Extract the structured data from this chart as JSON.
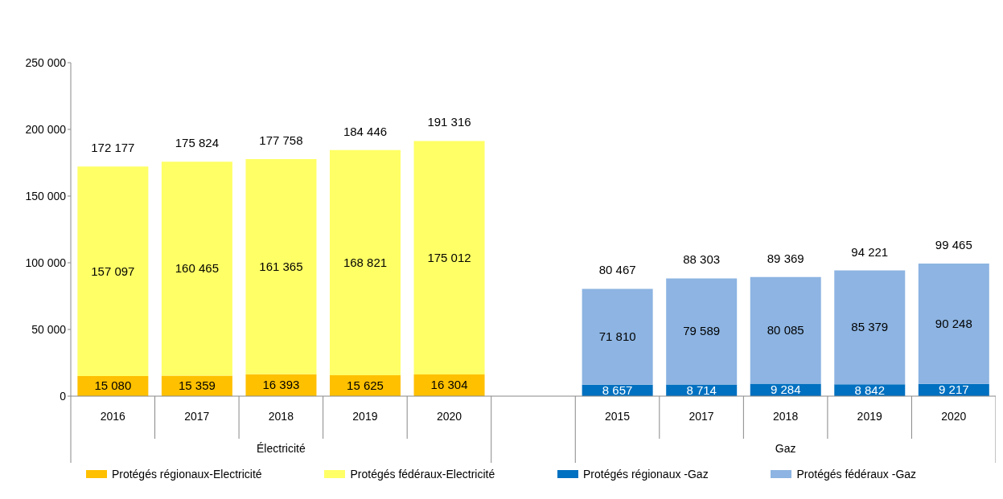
{
  "chart_data": {
    "type": "bar",
    "stacked": true,
    "categories": [
      "2016",
      "2017",
      "2018",
      "2019",
      "2020",
      null,
      "2015",
      "2017",
      "2018",
      "2019",
      "2020"
    ],
    "series": [
      {
        "name": "Protégés régionaux-Electricité",
        "color": "#ffc000",
        "values": [
          15080,
          15359,
          16393,
          15625,
          16304,
          null,
          null,
          null,
          null,
          null,
          null
        ],
        "value_labels": [
          "15 080",
          "15 359",
          "16 393",
          "15 625",
          "16 304",
          null,
          null,
          null,
          null,
          null,
          null
        ]
      },
      {
        "name": "Protégés fédéraux-Electricité",
        "color": "#ffff66",
        "values": [
          157097,
          160465,
          161365,
          168821,
          175012,
          null,
          null,
          null,
          null,
          null,
          null
        ],
        "value_labels": [
          "157 097",
          "160 465",
          "161 365",
          "168 821",
          "175 012",
          null,
          null,
          null,
          null,
          null,
          null
        ]
      },
      {
        "name": "Protégés régionaux -Gaz",
        "color": "#0070c0",
        "values": [
          null,
          null,
          null,
          null,
          null,
          null,
          8657,
          8714,
          9284,
          8842,
          9217
        ],
        "value_labels": [
          null,
          null,
          null,
          null,
          null,
          null,
          "8 657",
          "8 714",
          "9 284",
          "8 842",
          "9 217"
        ]
      },
      {
        "name": "Protégés fédéraux -Gaz",
        "color": "#8db4e2",
        "values": [
          null,
          null,
          null,
          null,
          null,
          null,
          71810,
          79589,
          80085,
          85379,
          90248
        ],
        "value_labels": [
          null,
          null,
          null,
          null,
          null,
          null,
          "71 810",
          "79 589",
          "80 085",
          "85 379",
          "90 248"
        ]
      }
    ],
    "totals": [
      "172 177",
      "175 824",
      "177 758",
      "184 446",
      "191 316",
      null,
      "80 467",
      "88 303",
      "89 369",
      "94 221",
      "99 465"
    ],
    "annotations": [
      "Électricité",
      "Gaz"
    ],
    "ylim": [
      0,
      250000
    ],
    "yticks": [
      {
        "value": 0,
        "label": "0"
      },
      {
        "value": 50000,
        "label": "50 000"
      },
      {
        "value": 100000,
        "label": "100 000"
      },
      {
        "value": 150000,
        "label": "150 000"
      },
      {
        "value": 200000,
        "label": "200 000"
      },
      {
        "value": 250000,
        "label": "250 000"
      }
    ],
    "grid": false,
    "legend": "bottom"
  }
}
